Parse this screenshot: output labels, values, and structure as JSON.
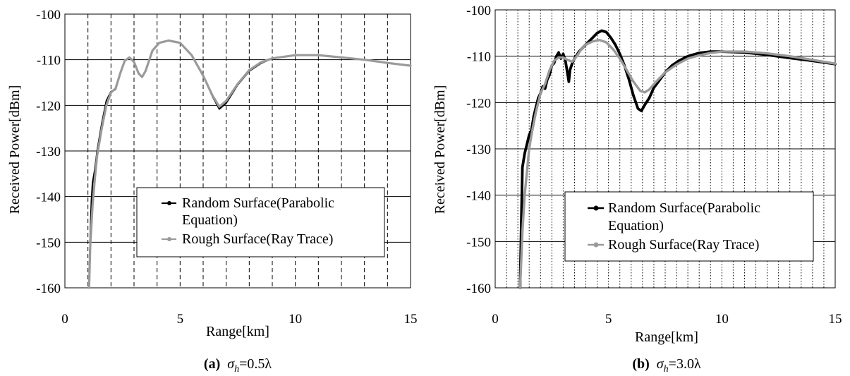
{
  "colors": {
    "series_pe": "#000000",
    "series_rt": "#9a9a9a",
    "grid": "#000000"
  },
  "chart_data": [
    {
      "type": "line",
      "panel": "a",
      "xlabel": "Range[km]",
      "ylabel": "Received Power[dBm]",
      "xlim": [
        0,
        15
      ],
      "ylim": [
        -160,
        -100
      ],
      "xticks": [
        0,
        5,
        10,
        15
      ],
      "yticks": [
        -160,
        -150,
        -140,
        -130,
        -120,
        -110,
        -100
      ],
      "grid": "vertical lines dashed every 1 km, horizontal lines solid every 10 dBm",
      "legend_placement": "lower-right",
      "caption": {
        "label": "(a)",
        "symbol": "σ",
        "subscript": "h",
        "value": "=0.5λ"
      },
      "series": [
        {
          "name": "Random Surface(Parabolic Equation)",
          "legend_lines": [
            "Random Surface(Parabolic",
            "Equation)"
          ],
          "x": [
            1.05,
            1.1,
            1.15,
            1.2,
            1.3,
            1.4,
            1.5,
            1.6,
            1.8,
            2.0,
            2.2,
            2.4,
            2.6,
            2.8,
            3.0,
            3.2,
            3.35,
            3.5,
            3.8,
            4.1,
            4.5,
            5.0,
            5.5,
            6.0,
            6.4,
            6.7,
            7.0,
            7.5,
            8.0,
            8.5,
            9.0,
            10.0,
            11.0,
            12.0,
            13.0,
            14.0,
            15.0
          ],
          "y": [
            -160,
            -149,
            -141,
            -137,
            -134,
            -130,
            -127,
            -124,
            -119,
            -117,
            -116.5,
            -113,
            -110.2,
            -109.5,
            -110.5,
            -113,
            -113.8,
            -112.5,
            -108,
            -106.3,
            -105.8,
            -106.3,
            -109,
            -113.5,
            -118,
            -120.8,
            -119.5,
            -115.5,
            -112.5,
            -110.8,
            -109.7,
            -109,
            -109,
            -109.5,
            -110,
            -110.7,
            -111.3
          ]
        },
        {
          "name": "Rough Surface(Ray Trace)",
          "legend_lines": [
            "Rough Surface(Ray Trace)"
          ],
          "x": [
            1.05,
            1.1,
            1.2,
            1.3,
            1.4,
            1.5,
            1.6,
            1.8,
            2.0,
            2.2,
            2.4,
            2.6,
            2.8,
            3.0,
            3.2,
            3.35,
            3.5,
            3.8,
            4.1,
            4.5,
            5.0,
            5.5,
            6.0,
            6.4,
            6.7,
            7.0,
            7.5,
            8.0,
            8.5,
            9.0,
            10.0,
            11.0,
            12.0,
            13.0,
            14.0,
            15.0
          ],
          "y": [
            -160,
            -151,
            -142,
            -136,
            -131,
            -128,
            -125,
            -120,
            -117.2,
            -116.3,
            -113,
            -110.2,
            -109.5,
            -110.5,
            -113,
            -113.8,
            -112.5,
            -108,
            -106.3,
            -105.8,
            -106.3,
            -109,
            -113.5,
            -117.8,
            -120.3,
            -119,
            -115.3,
            -112.3,
            -110.6,
            -109.7,
            -109,
            -109,
            -109.5,
            -110,
            -110.7,
            -111.3
          ]
        }
      ]
    },
    {
      "type": "line",
      "panel": "b",
      "xlabel": "Range[km]",
      "ylabel": "Received Power[dBm]",
      "xlim": [
        0,
        15
      ],
      "ylim": [
        -160,
        -100
      ],
      "xticks": [
        0,
        5,
        10,
        15
      ],
      "yticks": [
        -160,
        -150,
        -140,
        -130,
        -120,
        -110,
        -100
      ],
      "grid": "vertical lines dotted every 0.5 km, horizontal lines solid every 10 dBm",
      "legend_placement": "lower-right",
      "caption": {
        "label": "(b)",
        "symbol": "σ",
        "subscript": "h",
        "value": "=3.0λ"
      },
      "series": [
        {
          "name": "Random Surface(Parabolic Equation)",
          "legend_lines": [
            "Random Surface(Parabolic",
            "Equation)"
          ],
          "x": [
            1.1,
            1.15,
            1.2,
            1.3,
            1.4,
            1.5,
            1.6,
            1.7,
            1.8,
            1.9,
            2.0,
            2.1,
            2.2,
            2.3,
            2.4,
            2.5,
            2.6,
            2.7,
            2.8,
            2.9,
            3.0,
            3.1,
            3.2,
            3.25,
            3.3,
            3.4,
            3.5,
            3.7,
            3.9,
            4.1,
            4.3,
            4.5,
            4.7,
            4.9,
            5.1,
            5.3,
            5.5,
            5.7,
            5.9,
            6.1,
            6.3,
            6.45,
            6.6,
            6.8,
            7.0,
            7.2,
            7.5,
            7.8,
            8.1,
            8.5,
            9.0,
            9.5,
            10.0,
            11.0,
            12.0,
            13.0,
            14.0,
            15.0
          ],
          "y": [
            -160,
            -146,
            -134,
            -131,
            -129,
            -127,
            -126,
            -123,
            -121,
            -119,
            -118,
            -116.5,
            -117,
            -115,
            -114,
            -112,
            -111.5,
            -110,
            -109.2,
            -110.5,
            -109.5,
            -111,
            -114,
            -115.5,
            -113,
            -111.5,
            -110.5,
            -109,
            -108,
            -107,
            -106,
            -105,
            -104.5,
            -104.8,
            -106,
            -107.5,
            -109.5,
            -112,
            -115,
            -118.5,
            -121.3,
            -121.8,
            -120.5,
            -119,
            -116.8,
            -115.5,
            -113.5,
            -112,
            -111,
            -110,
            -109.3,
            -109,
            -109,
            -109.2,
            -109.7,
            -110.4,
            -111,
            -111.7
          ]
        },
        {
          "name": "Rough Surface(Ray Trace)",
          "legend_lines": [
            "Rough Surface(Ray Trace)"
          ],
          "x": [
            1.1,
            1.2,
            1.3,
            1.4,
            1.5,
            1.6,
            1.8,
            2.0,
            2.2,
            2.4,
            2.6,
            2.8,
            3.0,
            3.2,
            3.4,
            3.6,
            3.8,
            4.0,
            4.3,
            4.6,
            4.9,
            5.2,
            5.5,
            5.8,
            6.1,
            6.4,
            6.6,
            6.8,
            7.1,
            7.5,
            8.0,
            8.5,
            9.0,
            9.5,
            10.0,
            11.0,
            12.0,
            13.0,
            14.0,
            15.0
          ],
          "y": [
            -160,
            -148,
            -140,
            -135,
            -130,
            -127,
            -122,
            -118,
            -116,
            -113,
            -111,
            -110.3,
            -110.3,
            -110.8,
            -111.2,
            -110,
            -108.5,
            -107.5,
            -106.8,
            -106.5,
            -107,
            -108.5,
            -110.5,
            -113,
            -115.5,
            -117.5,
            -117.8,
            -117.2,
            -115.5,
            -113.5,
            -111.8,
            -110.5,
            -109.8,
            -109.3,
            -109,
            -109,
            -109.4,
            -110,
            -110.8,
            -111.6
          ]
        }
      ]
    }
  ]
}
